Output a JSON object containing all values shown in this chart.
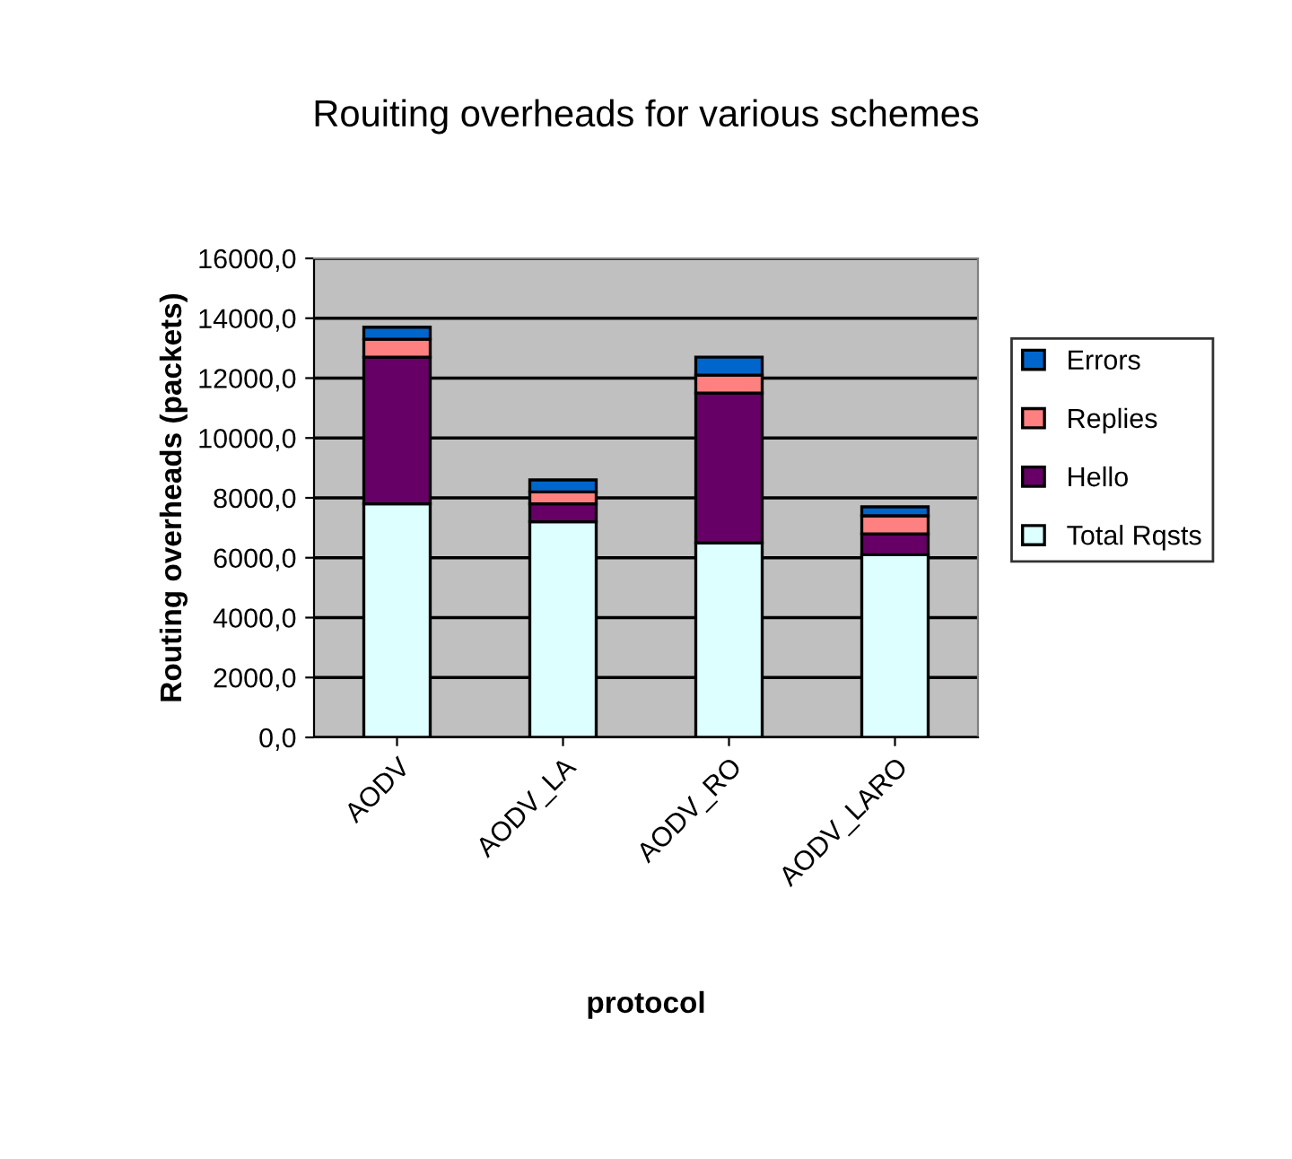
{
  "chart_data": {
    "type": "bar",
    "title": "Rouiting overheads for various schemes",
    "xlabel": "protocol",
    "ylabel": "Routing overheads (packets)",
    "categories": [
      "AODV",
      "AODV_LA",
      "AODV_RO",
      "AODV_LARO"
    ],
    "stacked": true,
    "series": [
      {
        "name": "Total Rqsts",
        "color": "#ddffff",
        "values": [
          7800,
          7200,
          6500,
          6100
        ]
      },
      {
        "name": "Hello",
        "color": "#660066",
        "values": [
          4900,
          600,
          5000,
          700
        ]
      },
      {
        "name": "Replies",
        "color": "#ff8080",
        "values": [
          600,
          400,
          600,
          600
        ]
      },
      {
        "name": "Errors",
        "color": "#0066cc",
        "values": [
          400,
          400,
          600,
          300
        ]
      }
    ],
    "ylim": [
      0,
      16000
    ],
    "yticks": [
      {
        "value": 0,
        "label": "0,0"
      },
      {
        "value": 2000,
        "label": "2000,0"
      },
      {
        "value": 4000,
        "label": "4000,0"
      },
      {
        "value": 6000,
        "label": "6000,0"
      },
      {
        "value": 8000,
        "label": "8000,0"
      },
      {
        "value": 10000,
        "label": "10000,0"
      },
      {
        "value": 12000,
        "label": "12000,0"
      },
      {
        "value": 14000,
        "label": "14000,0"
      },
      {
        "value": 16000,
        "label": "16000,0"
      }
    ],
    "grid": "y",
    "legend": "right"
  }
}
